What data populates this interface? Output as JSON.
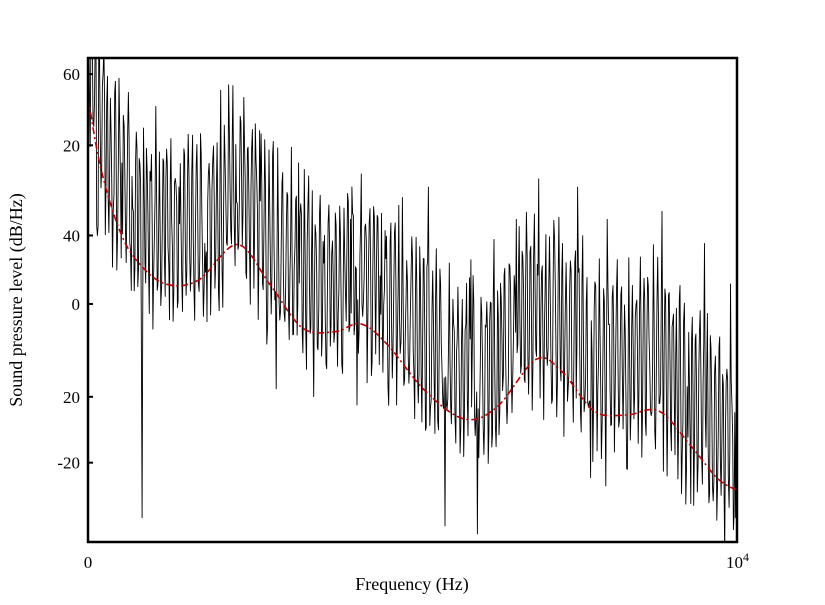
{
  "chart_data": {
    "type": "line",
    "title": "",
    "xlabel": "Frequency (Hz)",
    "ylabel": "Sound pressure level (dB/Hz)",
    "xlim": [
      0,
      10000
    ],
    "ylim_outer": [
      2,
      62
    ],
    "ylim_inner": [
      -30,
      31
    ],
    "grid": false,
    "legend": "none",
    "x_ticks": [
      {
        "value": 0,
        "base": "0",
        "exp": ""
      },
      {
        "value": 10000,
        "base": "10",
        "exp": "4"
      }
    ],
    "y_ticks_outer": [
      {
        "value": 60,
        "label": "60"
      },
      {
        "value": 40,
        "label": "40"
      },
      {
        "value": 20,
        "label": "20"
      }
    ],
    "y_ticks_inner": [
      {
        "value": 20,
        "label": "20"
      },
      {
        "value": 0,
        "label": "0"
      },
      {
        "value": -20,
        "label": "-20"
      }
    ],
    "series": [
      {
        "style": "solid",
        "color": "#000000",
        "axis": "outer",
        "peaks": [
          [
            150,
            40
          ],
          [
            350,
            57
          ],
          [
            520,
            49
          ],
          [
            700,
            43
          ],
          [
            1050,
            56
          ],
          [
            1400,
            46
          ],
          [
            1800,
            39
          ],
          [
            2050,
            58
          ],
          [
            2300,
            44
          ],
          [
            2650,
            53
          ],
          [
            3250,
            49
          ],
          [
            3650,
            40
          ],
          [
            4050,
            42
          ],
          [
            4500,
            35
          ],
          [
            5250,
            46
          ],
          [
            5900,
            37
          ],
          [
            6600,
            42
          ],
          [
            6950,
            47
          ],
          [
            7550,
            46
          ],
          [
            8000,
            42
          ],
          [
            8850,
            43
          ],
          [
            9500,
            39
          ],
          [
            9900,
            34
          ]
        ],
        "dips": [
          [
            830,
            5
          ],
          [
            2900,
            21
          ],
          [
            4150,
            19
          ],
          [
            5500,
            4
          ],
          [
            6000,
            3
          ],
          [
            7750,
            10
          ],
          [
            9250,
            15
          ],
          [
            9980,
            5
          ]
        ]
      },
      {
        "style": "dash-dot",
        "color": "#c00000",
        "axis": "inner",
        "points": [
          [
            0,
            26
          ],
          [
            200,
            17
          ],
          [
            500,
            9
          ],
          [
            800,
            5
          ],
          [
            1200,
            2.5
          ],
          [
            1700,
            3
          ],
          [
            2300,
            7.5
          ],
          [
            2800,
            2.5
          ],
          [
            3300,
            -3
          ],
          [
            3800,
            -3.5
          ],
          [
            4200,
            -2.5
          ],
          [
            4600,
            -5
          ],
          [
            5200,
            -11
          ],
          [
            5800,
            -14.5
          ],
          [
            6300,
            -13
          ],
          [
            6900,
            -7
          ],
          [
            7300,
            -8.5
          ],
          [
            7800,
            -13.5
          ],
          [
            8300,
            -14
          ],
          [
            8800,
            -13.5
          ],
          [
            9300,
            -18
          ],
          [
            9700,
            -22
          ],
          [
            10000,
            -23.5
          ]
        ]
      }
    ]
  }
}
